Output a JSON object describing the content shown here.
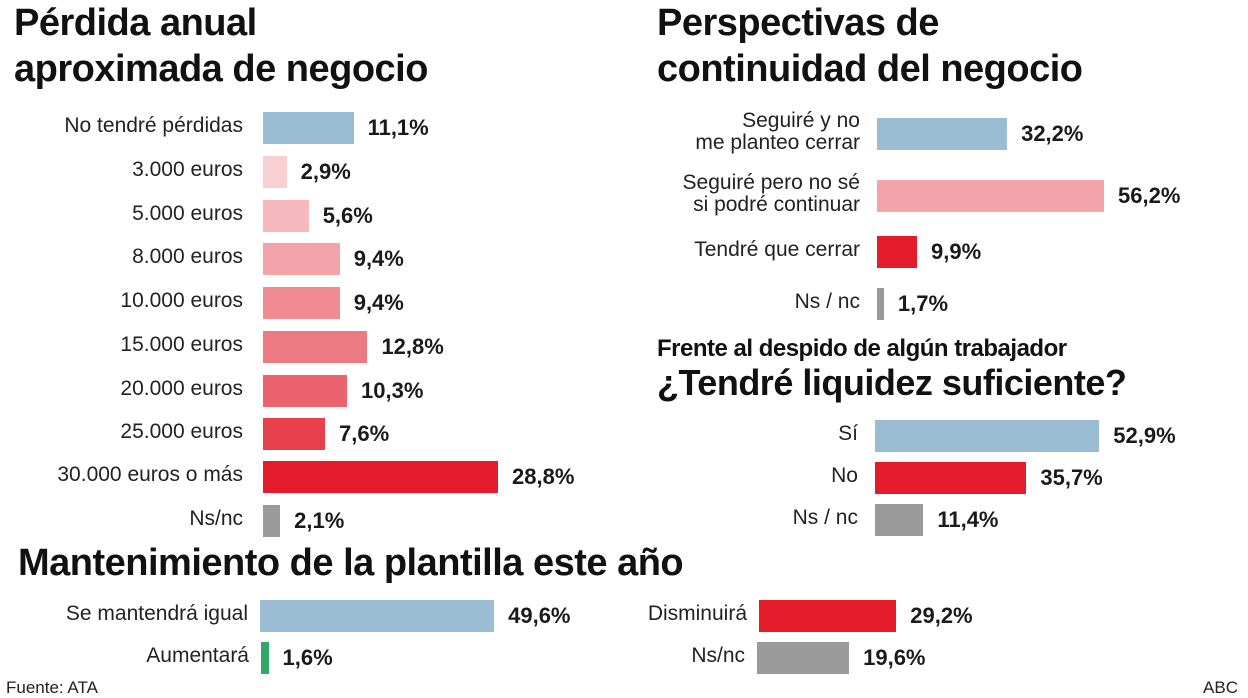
{
  "colors": {
    "blue": "#9bbdd4",
    "red": "#e31b2b",
    "gray": "#9a9a9a",
    "green": "#2fa86a",
    "pink1": "#f8d0d2",
    "pink2": "#f6b9be",
    "pink3": "#f3a3aa",
    "pink4": "#f08a93",
    "pink5": "#ed7a83",
    "pink6": "#ea636e",
    "pink7": "#e6404c"
  },
  "chart_data": [
    {
      "type": "bar",
      "orientation": "horizontal",
      "title": "Pérdida anual aproximada de negocio",
      "title_lines": [
        "Pérdida anual",
        "aproximada de negocio"
      ],
      "categories": [
        "No tendré pérdidas",
        "3.000 euros",
        "5.000 euros",
        "8.000 euros",
        "10.000 euros",
        "15.000 euros",
        "20.000 euros",
        "25.000 euros",
        "30.000 euros o más",
        "Ns/nc"
      ],
      "values": [
        11.1,
        2.9,
        5.6,
        9.4,
        9.4,
        12.8,
        10.3,
        7.6,
        28.8,
        2.1
      ],
      "value_labels": [
        "11,1%",
        "2,9%",
        "5,6%",
        "9,4%",
        "9,4%",
        "12,8%",
        "10,3%",
        "7,6%",
        "28,8%",
        "2,1%"
      ],
      "bar_colors": [
        "blue",
        "pink1",
        "pink2",
        "pink3",
        "pink4",
        "pink5",
        "pink6",
        "pink7",
        "red",
        "gray"
      ],
      "unit": "%"
    },
    {
      "type": "bar",
      "orientation": "horizontal",
      "title": "Perspectivas de continuidad del negocio",
      "title_lines": [
        "Perspectivas de",
        "continuidad del negocio"
      ],
      "categories": [
        "Seguiré y no me planteo cerrar",
        "Seguiré pero no sé si podré continuar",
        "Tendré que cerrar",
        "Ns / nc"
      ],
      "category_lines": [
        [
          "Seguiré y no",
          "me planteo cerrar"
        ],
        [
          "Seguiré pero no sé",
          "si podré continuar"
        ],
        [
          "Tendré que cerrar"
        ],
        [
          "Ns / nc"
        ]
      ],
      "values": [
        32.2,
        56.2,
        9.9,
        1.7
      ],
      "value_labels": [
        "32,2%",
        "56,2%",
        "9,9%",
        "1,7%"
      ],
      "bar_colors": [
        "blue",
        "pink3",
        "red",
        "gray"
      ],
      "unit": "%"
    },
    {
      "type": "bar",
      "orientation": "horizontal",
      "subtitle": "Frente al despido de algún trabajador",
      "title": "¿Tendré liquidez suficiente?",
      "categories": [
        "Sí",
        "No",
        "Ns / nc"
      ],
      "values": [
        52.9,
        35.7,
        11.4
      ],
      "value_labels": [
        "52,9%",
        "35,7%",
        "11,4%"
      ],
      "bar_colors": [
        "blue",
        "red",
        "gray"
      ],
      "unit": "%"
    },
    {
      "type": "bar",
      "orientation": "horizontal",
      "title": "Mantenimiento de la plantilla este año",
      "categories": [
        "Se mantendrá igual",
        "Aumentará",
        "Disminuirá",
        "Ns/nc"
      ],
      "values": [
        49.6,
        1.6,
        29.2,
        19.6
      ],
      "value_labels": [
        "49,6%",
        "1,6%",
        "29,2%",
        "19,6%"
      ],
      "bar_colors": [
        "blue",
        "green",
        "red",
        "gray"
      ],
      "unit": "%"
    }
  ],
  "footer": {
    "source": "Fuente: ATA",
    "brand": "ABC"
  }
}
